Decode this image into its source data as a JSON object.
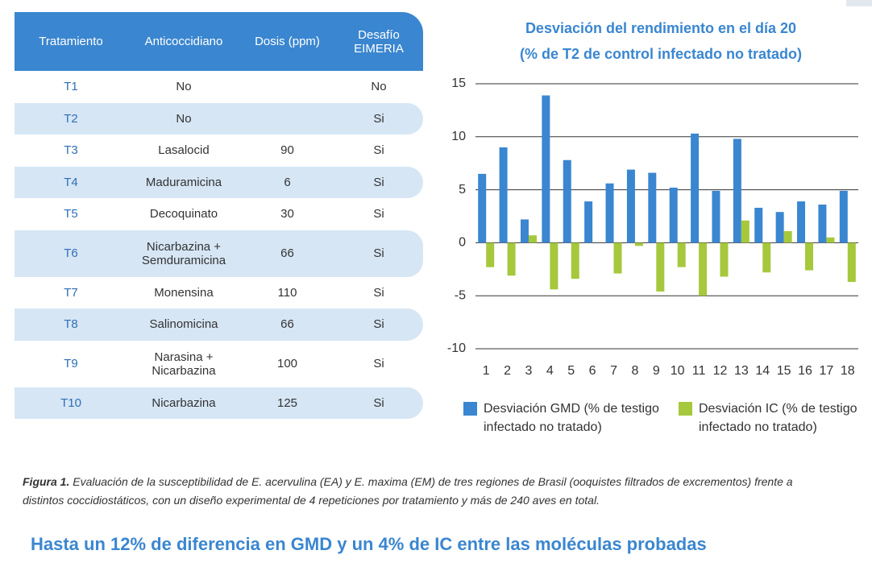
{
  "table": {
    "headers": [
      "Tratamiento",
      "Anticoccidiano",
      "Dosis (ppm)",
      "Desafío EIMERIA"
    ],
    "rows": [
      [
        "T1",
        "No",
        null,
        "No"
      ],
      [
        "T2",
        "No",
        null,
        "Si"
      ],
      [
        "T3",
        "Lasalocid",
        90,
        "Si"
      ],
      [
        "T4",
        "Maduramicina",
        6,
        "Si"
      ],
      [
        "T5",
        "Decoquinato",
        30,
        "Si"
      ],
      [
        "T6",
        "Nicarbazina + Semduramicina",
        66,
        "Si"
      ],
      [
        "T7",
        "Monensina",
        110,
        "Si"
      ],
      [
        "T8",
        "Salinomicina",
        66,
        "Si"
      ],
      [
        "T9",
        "Narasina + Nicarbazina",
        100,
        "Si"
      ],
      [
        "T10",
        "Nicarbazina",
        125,
        "Si"
      ]
    ]
  },
  "chart_data": {
    "type": "bar",
    "title": "Desviación del rendimiento en el día 20",
    "subtitle": "(% de T2 de control infectado no tratado)",
    "categories": [
      "1",
      "2",
      "3",
      "4",
      "5",
      "6",
      "7",
      "8",
      "9",
      "10",
      "11",
      "12",
      "13",
      "14",
      "15",
      "16",
      "17",
      "18"
    ],
    "series": [
      {
        "name": "Desviación GMD (% de testigo infectado no tratado)",
        "color": "#3a86d0",
        "values": [
          6.5,
          9.0,
          2.2,
          13.9,
          7.8,
          3.9,
          5.6,
          6.9,
          6.6,
          5.2,
          10.3,
          4.9,
          9.8,
          3.3,
          2.9,
          3.9,
          3.6,
          4.9
        ]
      },
      {
        "name": "Desviación IC (% de testigo infectado no tratado)",
        "color": "#a6c83c",
        "values": [
          -2.3,
          -3.1,
          0.7,
          -4.4,
          -3.4,
          0,
          -2.9,
          -0.3,
          -4.6,
          -2.3,
          -5.0,
          -3.2,
          2.1,
          -2.8,
          1.1,
          -2.6,
          0.5,
          -3.7
        ]
      }
    ],
    "ylim": [
      -10,
      15
    ],
    "yticks": [
      -10,
      -5,
      0,
      5,
      10,
      15
    ],
    "grid": true
  },
  "caption": {
    "label": "Figura 1.",
    "text": "Evaluación de la susceptibilidad de E. acervulina (EA) y E. maxima (EM) de tres regiones de Brasil (ooquistes filtrados de excrementos) frente a distintos coccidiostáticos, con un diseño experimental de 4 repeticiones por tratamiento y más de 240 aves en total."
  },
  "headline": "Hasta un 12% de diferencia en GMD y un 4% de IC entre las moléculas probadas"
}
